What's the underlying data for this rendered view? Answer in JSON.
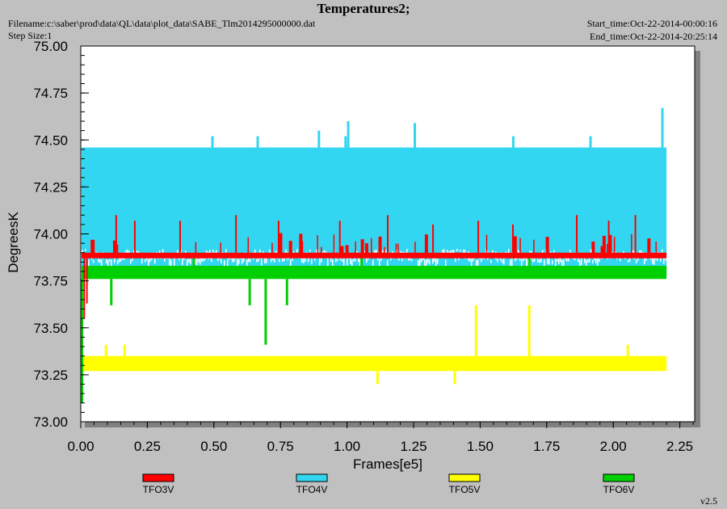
{
  "header": {
    "title": "Temperatures2;",
    "filename": "Filename:c:\\saber\\prod\\data\\QL\\data\\plot_data\\SABE_Tlm2014295000000.dat",
    "step_size": "Step Size:1",
    "start_time": "Start_time:Oct-22-2014-00:00:16",
    "end_time": "End_time:Oct-22-2014-20:25:14"
  },
  "footer": {
    "version": "v2.5"
  },
  "colors": {
    "TFO3V": "#ff0000",
    "TFO4V": "#33d6f0",
    "TFO5V": "#ffff00",
    "TFO6V": "#00d000",
    "plot_background": "#ffffff",
    "window_background": "#c0c0c0"
  },
  "chart_data": {
    "type": "line",
    "title": "Temperatures2;",
    "xlabel": "Frames[e5]",
    "ylabel": "DegreesK",
    "xlim": [
      0,
      2.3
    ],
    "ylim": [
      73.0,
      75.0
    ],
    "x_ticks": [
      "0.00",
      "0.25",
      "0.50",
      "0.75",
      "1.00",
      "1.25",
      "1.50",
      "1.75",
      "2.00",
      "2.25"
    ],
    "y_ticks": [
      "73.00",
      "73.25",
      "73.50",
      "73.75",
      "74.00",
      "74.25",
      "74.50",
      "74.75",
      "75.00"
    ],
    "legend_position": "bottom",
    "x_extent": [
      0,
      2.2
    ],
    "series": [
      {
        "name": "TFO3V",
        "base_range": [
          73.87,
          73.9
        ],
        "spikes": [
          {
            "x": 0.01,
            "y": 73.55
          },
          {
            "x": 0.02,
            "y": 73.63
          },
          {
            "x": 0.13,
            "y": 74.1
          },
          {
            "x": 0.2,
            "y": 74.07
          },
          {
            "x": 0.37,
            "y": 74.07
          },
          {
            "x": 0.58,
            "y": 74.1
          },
          {
            "x": 0.74,
            "y": 74.07
          },
          {
            "x": 0.97,
            "y": 74.07
          },
          {
            "x": 1.15,
            "y": 74.1
          },
          {
            "x": 1.32,
            "y": 74.05
          },
          {
            "x": 1.49,
            "y": 74.07
          },
          {
            "x": 1.62,
            "y": 74.05
          },
          {
            "x": 1.86,
            "y": 74.1
          },
          {
            "x": 1.98,
            "y": 74.07
          },
          {
            "x": 2.08,
            "y": 74.1
          }
        ]
      },
      {
        "name": "TFO4V",
        "base_range": [
          73.78,
          74.46
        ],
        "spikes": [
          {
            "x": 0.49,
            "y": 74.52
          },
          {
            "x": 0.66,
            "y": 74.52
          },
          {
            "x": 0.89,
            "y": 74.55
          },
          {
            "x": 0.99,
            "y": 74.52
          },
          {
            "x": 1.0,
            "y": 74.6
          },
          {
            "x": 1.25,
            "y": 74.59
          },
          {
            "x": 1.62,
            "y": 74.52
          },
          {
            "x": 1.91,
            "y": 74.52
          },
          {
            "x": 2.18,
            "y": 74.67
          }
        ]
      },
      {
        "name": "TFO5V",
        "base_range": [
          73.27,
          73.35
        ],
        "spikes": [
          {
            "x": 0.09,
            "y": 73.41
          },
          {
            "x": 0.16,
            "y": 73.41
          },
          {
            "x": 1.11,
            "y": 73.2
          },
          {
            "x": 1.4,
            "y": 73.2
          },
          {
            "x": 1.48,
            "y": 73.62
          },
          {
            "x": 1.68,
            "y": 73.62
          },
          {
            "x": 2.05,
            "y": 73.41
          }
        ]
      },
      {
        "name": "TFO6V",
        "base_range": [
          73.76,
          73.83
        ],
        "spikes": [
          {
            "x": 0.0,
            "y": 73.1
          },
          {
            "x": 0.11,
            "y": 73.62
          },
          {
            "x": 0.63,
            "y": 73.62
          },
          {
            "x": 0.69,
            "y": 73.41
          },
          {
            "x": 0.77,
            "y": 73.62
          },
          {
            "x": 0.42,
            "y": 73.9
          },
          {
            "x": 1.05,
            "y": 73.9
          },
          {
            "x": 1.68,
            "y": 73.9
          }
        ]
      }
    ]
  }
}
